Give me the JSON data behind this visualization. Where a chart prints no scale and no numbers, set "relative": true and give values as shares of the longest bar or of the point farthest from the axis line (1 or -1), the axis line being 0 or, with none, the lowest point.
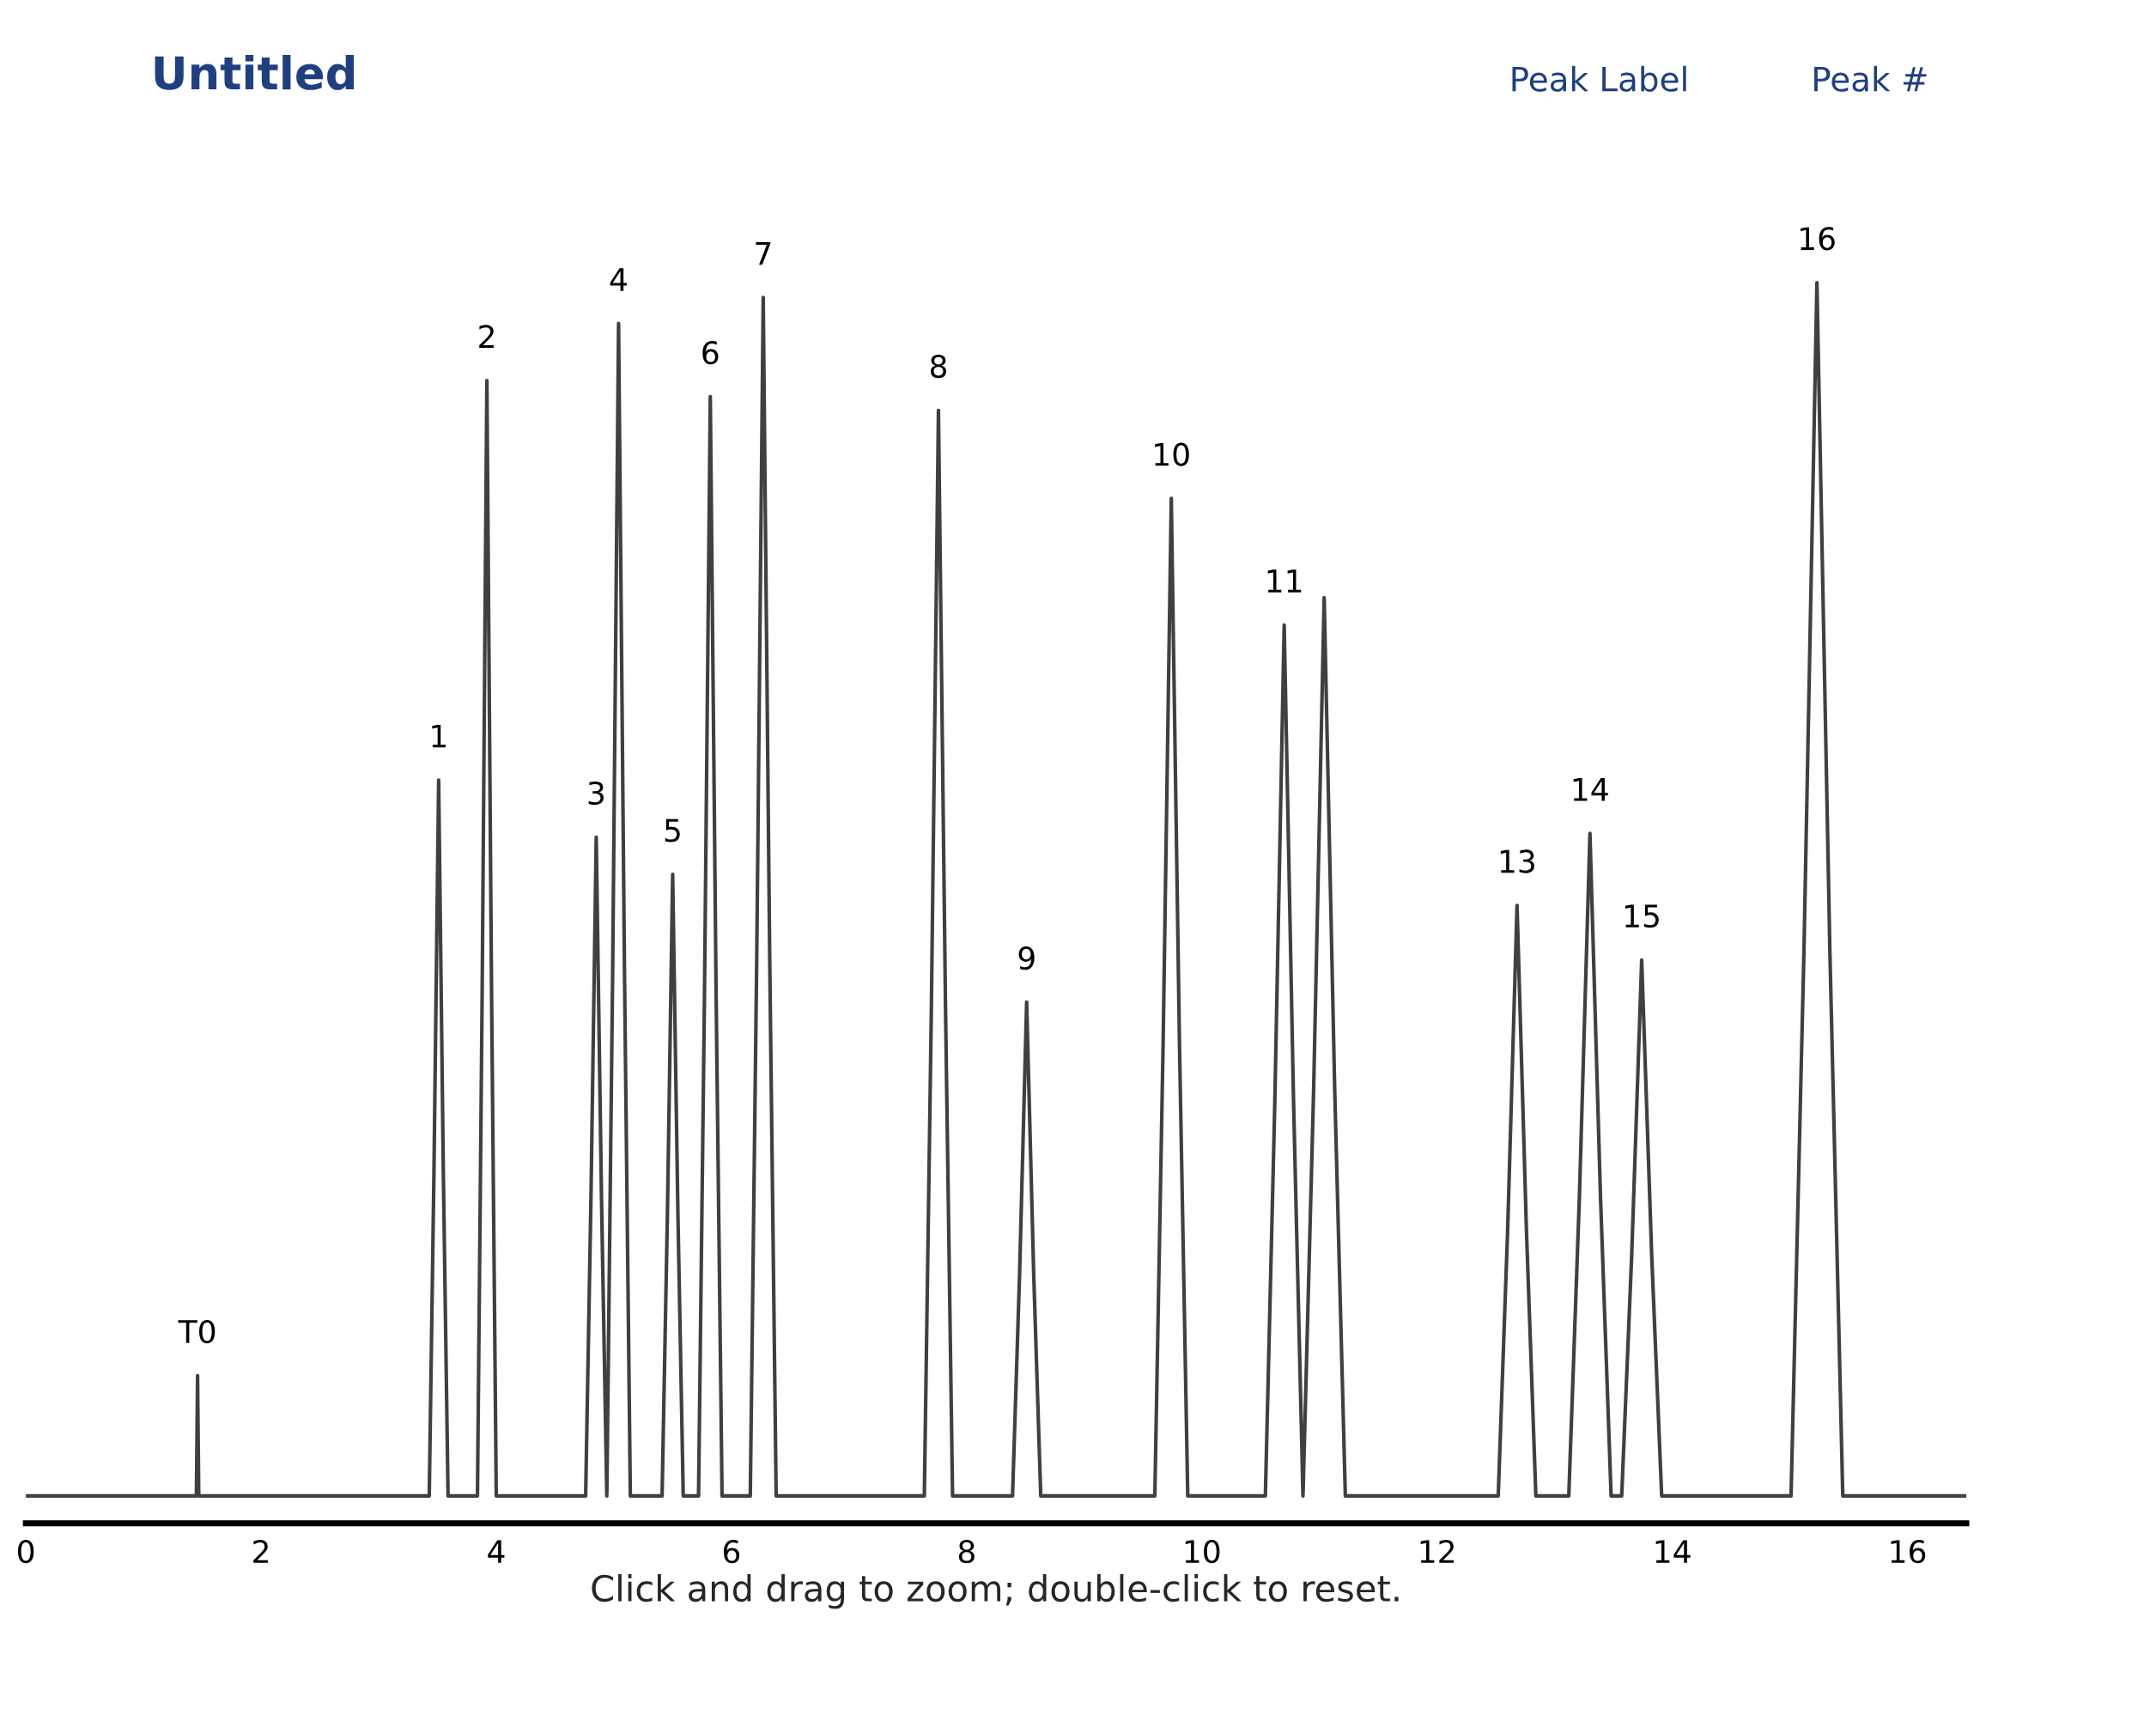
{
  "chart_data": {
    "type": "line",
    "title": "Untitled",
    "xlabel": "Click and drag to zoom; double-click to reset.",
    "relative": true,
    "xlim": [
      0,
      16.5
    ],
    "xticks": [
      0,
      2,
      4,
      6,
      8,
      10,
      12,
      14,
      16
    ],
    "grid": false,
    "legend": false,
    "marker": "none",
    "line_style": "solid",
    "x": [
      0,
      1.45,
      1.46,
      1.47,
      3.43,
      3.47,
      3.51,
      3.55,
      3.59,
      3.84,
      3.88,
      3.92,
      3.96,
      4.0,
      4.76,
      4.805,
      4.85,
      4.895,
      4.94,
      4.99,
      5.04,
      5.09,
      5.14,
      5.41,
      5.455,
      5.5,
      5.545,
      5.59,
      5.72,
      5.77,
      5.82,
      5.87,
      5.92,
      6.16,
      6.215,
      6.27,
      6.325,
      6.38,
      7.64,
      7.7,
      7.76,
      7.82,
      7.88,
      8.39,
      8.45,
      8.51,
      8.57,
      8.63,
      9.6,
      9.67,
      9.74,
      9.81,
      9.88,
      10.54,
      10.62,
      10.7,
      10.78,
      10.86,
      10.95,
      11.04,
      11.13,
      11.22,
      12.52,
      12.6,
      12.68,
      12.76,
      12.84,
      13.12,
      13.21,
      13.3,
      13.39,
      13.48,
      13.57,
      13.655,
      13.74,
      13.825,
      13.91,
      15.01,
      15.12,
      15.23,
      15.34,
      15.45,
      16.5
    ],
    "series": [
      {
        "color": "#404040",
        "values": [
          0.022,
          0.022,
          0.119,
          0.022,
          0.022,
          0.282,
          0.599,
          0.282,
          0.022,
          0.022,
          0.427,
          0.921,
          0.427,
          0.022,
          0.022,
          0.261,
          0.553,
          0.261,
          0.022,
          0.447,
          0.967,
          0.447,
          0.022,
          0.022,
          0.247,
          0.523,
          0.247,
          0.022,
          0.022,
          0.421,
          0.908,
          0.421,
          0.022,
          0.022,
          0.457,
          0.988,
          0.457,
          0.022,
          0.022,
          0.416,
          0.897,
          0.416,
          0.022,
          0.022,
          0.201,
          0.42,
          0.201,
          0.022,
          0.022,
          0.384,
          0.826,
          0.384,
          0.022,
          0.022,
          0.338,
          0.724,
          0.338,
          0.022,
          0.348,
          0.746,
          0.348,
          0.022,
          0.022,
          0.236,
          0.498,
          0.236,
          0.022,
          0.022,
          0.262,
          0.556,
          0.262,
          0.022,
          0.022,
          0.216,
          0.454,
          0.216,
          0.022,
          0.022,
          0.462,
          1.0,
          0.462,
          0.022,
          0.022
        ]
      }
    ],
    "annotations": [
      {
        "text": "T0",
        "x": 1.46,
        "y": 0.119
      },
      {
        "text": "1",
        "x": 3.51,
        "y": 0.599
      },
      {
        "text": "2",
        "x": 3.92,
        "y": 0.921
      },
      {
        "text": "3",
        "x": 4.85,
        "y": 0.553
      },
      {
        "text": "4",
        "x": 5.04,
        "y": 0.967
      },
      {
        "text": "5",
        "x": 5.5,
        "y": 0.523
      },
      {
        "text": "6",
        "x": 5.82,
        "y": 0.908
      },
      {
        "text": "7",
        "x": 6.27,
        "y": 0.988
      },
      {
        "text": "8",
        "x": 7.76,
        "y": 0.897
      },
      {
        "text": "9",
        "x": 8.51,
        "y": 0.42
      },
      {
        "text": "10",
        "x": 9.74,
        "y": 0.826
      },
      {
        "text": "11",
        "x": 10.7,
        "y": 0.724
      },
      {
        "text": "13",
        "x": 12.68,
        "y": 0.498
      },
      {
        "text": "14",
        "x": 13.3,
        "y": 0.556
      },
      {
        "text": "15",
        "x": 13.74,
        "y": 0.454
      },
      {
        "text": "16",
        "x": 15.23,
        "y": 1.0
      },
      "Peak Label",
      "Peak #"
    ]
  }
}
